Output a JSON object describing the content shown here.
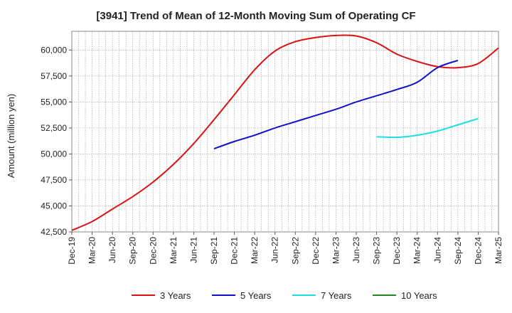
{
  "chart_data": {
    "type": "line",
    "title": "[3941]  Trend of Mean of 12-Month Moving Sum of Operating CF",
    "xlabel": "",
    "ylabel": "Amount (million yen)",
    "ylim": [
      42500,
      61800
    ],
    "yticks": [
      42500,
      45000,
      47500,
      50000,
      52500,
      55000,
      57500,
      60000
    ],
    "ytick_labels": [
      "42,500",
      "45,000",
      "47,500",
      "50,000",
      "52,500",
      "55,000",
      "57,500",
      "60,000"
    ],
    "x_start": "2019-12",
    "x_months_total": 63,
    "xtick_labels": [
      "Dec-19",
      "Mar-20",
      "Jun-20",
      "Sep-20",
      "Dec-20",
      "Mar-21",
      "Jun-21",
      "Sep-21",
      "Dec-21",
      "Mar-22",
      "Jun-22",
      "Sep-22",
      "Dec-22",
      "Mar-23",
      "Jun-23",
      "Sep-23",
      "Dec-23",
      "Mar-24",
      "Jun-24",
      "Sep-24",
      "Dec-24",
      "Mar-25"
    ],
    "grid": true,
    "legend_position": "bottom",
    "series": [
      {
        "name": "3 Years",
        "color": "#dd1111",
        "start_month_index": 0,
        "values": [
          42650,
          43500,
          44700,
          45900,
          47300,
          49000,
          51000,
          53300,
          55700,
          58100,
          59900,
          60800,
          61200,
          61400,
          61350,
          60700,
          59600,
          58900,
          58400,
          58300,
          58700,
          60200
        ]
      },
      {
        "name": "5 Years",
        "color": "#1111cc",
        "start_month_index": 21,
        "values": [
          50500,
          51200,
          51800,
          52500,
          53100,
          53700,
          54300,
          55000,
          55600,
          56200,
          56900,
          58300,
          59000
        ]
      },
      {
        "name": "7 Years",
        "color": "#22dddd",
        "start_month_index": 45,
        "values": [
          51650,
          51600,
          51800,
          52200,
          52800,
          53400
        ]
      },
      {
        "name": "10 Years",
        "color": "#228822",
        "start_month_index": null,
        "values": []
      }
    ]
  }
}
